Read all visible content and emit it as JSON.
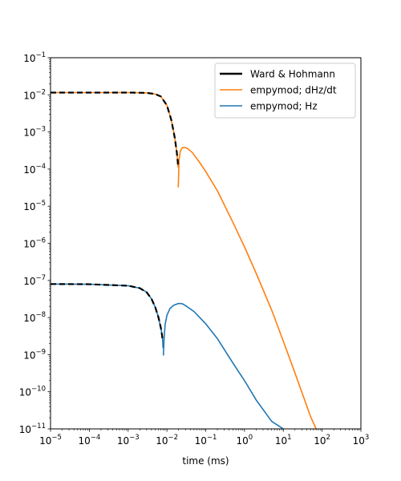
{
  "chart_data": {
    "type": "line",
    "title": "",
    "xlabel": "time (ms)",
    "ylabel": "",
    "xscale": "log",
    "yscale": "log",
    "xlim": [
      1e-05,
      1000
    ],
    "ylim": [
      1e-11,
      0.1
    ],
    "x_tick_labels": [
      {
        "base": "10",
        "exp": "−5",
        "value": 1e-05
      },
      {
        "base": "10",
        "exp": "−4",
        "value": 0.0001
      },
      {
        "base": "10",
        "exp": "−3",
        "value": 0.001
      },
      {
        "base": "10",
        "exp": "−2",
        "value": 0.01
      },
      {
        "base": "10",
        "exp": "−1",
        "value": 0.1
      },
      {
        "base": "10",
        "exp": "0",
        "value": 1
      },
      {
        "base": "10",
        "exp": "1",
        "value": 10
      },
      {
        "base": "10",
        "exp": "2",
        "value": 100
      },
      {
        "base": "10",
        "exp": "3",
        "value": 1000
      }
    ],
    "y_tick_labels": [
      {
        "base": "10",
        "exp": "−11",
        "value": 1e-11
      },
      {
        "base": "10",
        "exp": "−10",
        "value": 1e-10
      },
      {
        "base": "10",
        "exp": "−9",
        "value": 1e-09
      },
      {
        "base": "10",
        "exp": "−8",
        "value": 1e-08
      },
      {
        "base": "10",
        "exp": "−7",
        "value": 1e-07
      },
      {
        "base": "10",
        "exp": "−6",
        "value": 1e-06
      },
      {
        "base": "10",
        "exp": "−5",
        "value": 1e-05
      },
      {
        "base": "10",
        "exp": "−4",
        "value": 0.0001
      },
      {
        "base": "10",
        "exp": "−3",
        "value": 0.001
      },
      {
        "base": "10",
        "exp": "−2",
        "value": 0.01
      },
      {
        "base": "10",
        "exp": "−1",
        "value": 0.1
      }
    ],
    "legend": {
      "location": "upper right",
      "entries": [
        {
          "label": "Ward & Hohmann",
          "color": "#000000",
          "style": "solid-thick"
        },
        {
          "label": "empymod; dHz/dt",
          "color": "#ff7f0e",
          "style": "solid"
        },
        {
          "label": "empymod; Hz",
          "color": "#1f77b4",
          "style": "solid"
        }
      ]
    },
    "series": [
      {
        "name": "empymod; dHz/dt",
        "color": "#ff7f0e",
        "segments": [
          {
            "x": [
              1e-05,
              0.0001,
              0.001,
              0.003,
              0.005,
              0.007,
              0.01,
              0.013,
              0.016,
              0.018,
              0.019,
              0.0195
            ],
            "y": [
              0.0115,
              0.0115,
              0.0115,
              0.0113,
              0.0105,
              0.009,
              0.0052,
              0.0021,
              0.00068,
              0.00028,
              0.00016,
              0.00011
            ]
          },
          {
            "x": [
              0.0196,
              0.0205,
              0.022,
              0.025,
              0.03,
              0.035,
              0.045,
              0.07,
              0.1,
              0.2,
              0.5,
              1,
              2,
              5,
              10,
              20,
              50,
              70
            ],
            "y": [
              3.2e-05,
              0.00017,
              0.0003,
              0.00038,
              0.00038,
              0.00035,
              0.00028,
              0.00015,
              8.6e-05,
              2.6e-05,
              3.7e-06,
              8e-07,
              1.55e-07,
              1.6e-08,
              2.3e-09,
              3.2e-10,
              2.2e-11,
              1e-11
            ]
          }
        ]
      },
      {
        "name": "empymod; Hz",
        "color": "#1f77b4",
        "segments": [
          {
            "x": [
              1e-05,
              0.0001,
              0.001,
              0.002,
              0.003,
              0.004,
              0.005,
              0.006,
              0.007,
              0.0075,
              0.0078,
              0.00795
            ],
            "y": [
              8e-08,
              7.9e-08,
              7.2e-08,
              6.2e-08,
              4.8e-08,
              3.2e-08,
              1.9e-08,
              1.05e-08,
              5.2e-09,
              3.3e-09,
              2.3e-09,
              1.5e-09
            ]
          },
          {
            "x": [
              0.0081,
              0.0085,
              0.009,
              0.01,
              0.012,
              0.015,
              0.02,
              0.025,
              0.03,
              0.05,
              0.1,
              0.2,
              0.5,
              1,
              2,
              5,
              10
            ],
            "y": [
              9.5e-10,
              3e-09,
              6.5e-09,
              1.15e-08,
              1.75e-08,
              2.15e-08,
              2.4e-08,
              2.35e-08,
              2.1e-08,
              1.45e-08,
              6.8e-09,
              2.7e-09,
              6e-10,
              2e-10,
              6e-11,
              1.6e-11,
              1e-11
            ]
          }
        ]
      },
      {
        "name": "Ward & Hohmann",
        "color": "#000000",
        "dashed": true,
        "segments": [
          {
            "x": [
              1e-05,
              0.0001,
              0.001,
              0.003,
              0.005,
              0.007,
              0.01,
              0.013,
              0.016,
              0.018,
              0.019,
              0.0195
            ],
            "y": [
              0.0115,
              0.0115,
              0.0115,
              0.0113,
              0.0105,
              0.009,
              0.0052,
              0.0021,
              0.00068,
              0.00028,
              0.00016,
              0.00011
            ]
          },
          {
            "x": [
              1e-05,
              0.0001,
              0.001,
              0.002,
              0.003,
              0.004,
              0.005,
              0.006,
              0.007,
              0.0075,
              0.0078
            ],
            "y": [
              8e-08,
              7.9e-08,
              7.2e-08,
              6.2e-08,
              4.8e-08,
              3.2e-08,
              1.9e-08,
              1.05e-08,
              5.2e-09,
              3.3e-09,
              2.3e-09
            ]
          }
        ]
      }
    ]
  }
}
